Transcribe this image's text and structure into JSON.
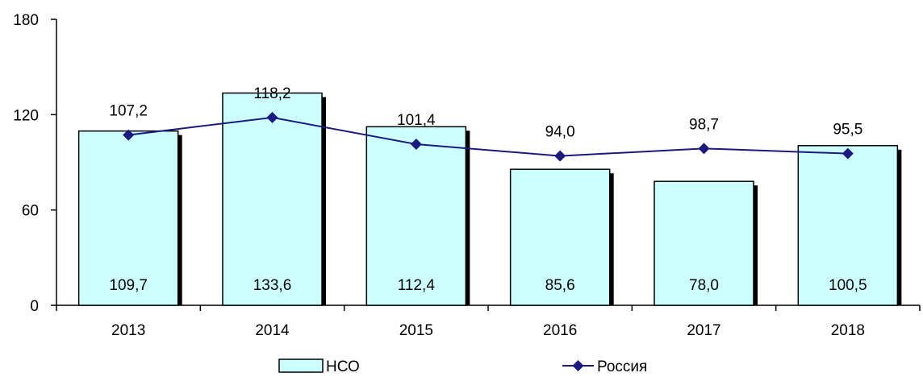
{
  "chart_data": {
    "type": "bar",
    "categories": [
      "2013",
      "2014",
      "2015",
      "2016",
      "2017",
      "2018"
    ],
    "ylim": [
      0,
      180
    ],
    "yticks": [
      0,
      60,
      120,
      180
    ],
    "series": [
      {
        "name": "НСО",
        "kind": "bar",
        "values": [
          109.7,
          133.6,
          112.4,
          85.6,
          78.0,
          100.5
        ],
        "labels": [
          "109,7",
          "133,6",
          "112,4",
          "85,6",
          "78,0",
          "100,5"
        ],
        "color": "#ccffff"
      },
      {
        "name": "Россия",
        "kind": "line",
        "values": [
          107.2,
          118.2,
          101.4,
          94.0,
          98.7,
          95.5
        ],
        "labels": [
          "107,2",
          "118,2",
          "101,4",
          "94,0",
          "98,7",
          "95,5"
        ],
        "color": "#1a1a80"
      }
    ],
    "title": "",
    "xlabel": "",
    "ylabel": "",
    "grid": false,
    "legend_position": "bottom"
  }
}
